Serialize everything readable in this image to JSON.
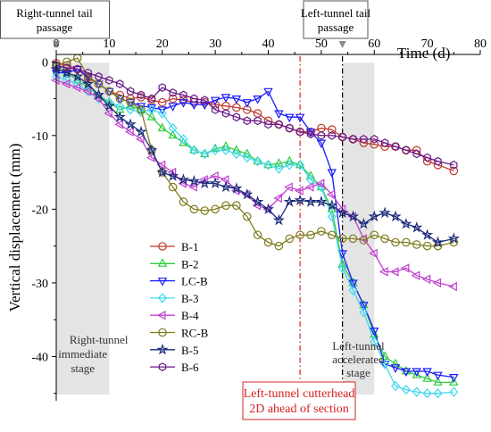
{
  "chart_data": {
    "type": "line",
    "xlabel": "Time (d)",
    "ylabel": "Vertical displacement (mm)",
    "xlim": [
      0,
      80
    ],
    "ylim": [
      -46,
      1
    ],
    "x_ticks": [
      0,
      10,
      20,
      30,
      40,
      50,
      60,
      70,
      80
    ],
    "y_ticks": [
      0,
      -10,
      -20,
      -30,
      -40
    ],
    "x_axis_position": "top",
    "grid": false,
    "legend": "center-left",
    "shaded_bands": [
      {
        "x_start": 0,
        "x_end": 10,
        "label": "Right-tunnel immediate stage"
      },
      {
        "x_start": 54,
        "x_end": 60,
        "label": "Left-tunnel accelerated stage"
      }
    ],
    "vlines": [
      {
        "x": 46,
        "color": "#d62020",
        "style": "dash-dot",
        "label": "Left-tunnel cutterhead 2D ahead of section"
      },
      {
        "x": 54,
        "color": "#000000",
        "style": "dash-dot",
        "label": ""
      }
    ],
    "annotations": [
      {
        "text": "Right-tunnel tail passage",
        "x": 0
      },
      {
        "text": "Left-tunnel tail passage",
        "x": 54
      }
    ],
    "series": [
      {
        "name": "B-1",
        "color": "#c0392b",
        "marker": "circle",
        "x": [
          0,
          2,
          4,
          6,
          8,
          10,
          12,
          14,
          16,
          18,
          20,
          22,
          24,
          26,
          28,
          30,
          32,
          34,
          36,
          38,
          40,
          42,
          44,
          46,
          48,
          50,
          52,
          54,
          56,
          58,
          60,
          62,
          64,
          66,
          68,
          70,
          72,
          75
        ],
        "y": [
          -0.2,
          -0.5,
          -1,
          -2.2,
          -3,
          -4,
          -4.5,
          -5,
          -4.8,
          -5.2,
          -5.5,
          -5,
          -5.2,
          -5.5,
          -5.5,
          -5.8,
          -6,
          -6.2,
          -6.5,
          -7,
          -8,
          -8.5,
          -9,
          -9.5,
          -9.5,
          -9,
          -9.2,
          -10.2,
          -10.5,
          -11,
          -11.2,
          -11.5,
          -11.5,
          -12,
          -12,
          -13.5,
          -14,
          -14.8
        ]
      },
      {
        "name": "B-2",
        "color": "#2ecc40",
        "marker": "triangle-up",
        "x": [
          0,
          2,
          4,
          6,
          8,
          10,
          12,
          14,
          16,
          18,
          20,
          22,
          24,
          26,
          28,
          30,
          32,
          34,
          36,
          38,
          40,
          42,
          44,
          46,
          48,
          50,
          52,
          54,
          56,
          58,
          60,
          62,
          64,
          66,
          68,
          70,
          72,
          75
        ],
        "y": [
          -0.5,
          -1.5,
          -2.5,
          -3.5,
          -4.5,
          -5.5,
          -6.5,
          -6,
          -6.5,
          -7.5,
          -9,
          -10,
          -11,
          -12,
          -12.5,
          -11.8,
          -11.5,
          -12,
          -12.5,
          -13.5,
          -14,
          -13.8,
          -13.5,
          -14,
          -15.5,
          -17,
          -20,
          -27.5,
          -30,
          -33,
          -37,
          -40,
          -41,
          -42,
          -42.5,
          -43,
          -43.5,
          -43.5
        ]
      },
      {
        "name": "LC-B",
        "color": "#1a1aff",
        "marker": "triangle-down",
        "x": [
          0,
          2,
          4,
          6,
          8,
          10,
          12,
          14,
          16,
          18,
          20,
          22,
          24,
          26,
          28,
          30,
          32,
          34,
          36,
          38,
          40,
          42,
          44,
          46,
          48,
          50,
          52,
          54,
          56,
          58,
          60,
          62,
          64,
          66,
          68,
          70,
          72,
          75
        ],
        "y": [
          -1.5,
          -1.5,
          -1,
          -2,
          -3,
          -4,
          -5,
          -5.5,
          -6,
          -6.2,
          -6.5,
          -6,
          -5.5,
          -5.8,
          -5.8,
          -5.2,
          -4.8,
          -5,
          -5.5,
          -5,
          -4,
          -7,
          -7.5,
          -7.5,
          -9.5,
          -11,
          -15,
          -26,
          -30,
          -33,
          -36.5,
          -41,
          -41.5,
          -42,
          -42,
          -42,
          -42.5,
          -42.8
        ]
      },
      {
        "name": "B-3",
        "color": "#40d8f0",
        "marker": "diamond",
        "x": [
          0,
          2,
          4,
          6,
          8,
          10,
          12,
          14,
          16,
          18,
          20,
          22,
          24,
          26,
          28,
          30,
          32,
          34,
          36,
          38,
          40,
          42,
          44,
          46,
          48,
          50,
          52,
          54,
          56,
          58,
          60,
          62,
          64,
          66,
          68,
          70,
          72,
          75
        ],
        "y": [
          -2,
          -2.5,
          -3,
          -4,
          -5,
          -5.5,
          -6,
          -6.5,
          -6.8,
          -6.5,
          -7,
          -9,
          -10.5,
          -12,
          -12.5,
          -12,
          -12,
          -12.5,
          -13,
          -13.5,
          -14,
          -14.5,
          -14,
          -14,
          -16,
          -17,
          -21,
          -28,
          -31,
          -34,
          -38,
          -41,
          -44,
          -44.5,
          -44.8,
          -45,
          -45,
          -44.8
        ]
      },
      {
        "name": "B-4",
        "color": "#c040d0",
        "marker": "triangle-left",
        "x": [
          0,
          2,
          4,
          6,
          8,
          10,
          12,
          14,
          16,
          18,
          20,
          22,
          24,
          26,
          28,
          30,
          32,
          34,
          36,
          38,
          40,
          42,
          44,
          46,
          48,
          50,
          52,
          54,
          56,
          58,
          60,
          62,
          64,
          66,
          68,
          70,
          72,
          75
        ],
        "y": [
          -2.5,
          -3,
          -3.5,
          -4,
          -5,
          -7,
          -8.5,
          -9.5,
          -10.5,
          -13,
          -14,
          -15,
          -16.5,
          -17,
          -16,
          -15.5,
          -16,
          -17.5,
          -18,
          -19.5,
          -20,
          -18.5,
          -17,
          -17.5,
          -17,
          -16.5,
          -18,
          -20,
          -21,
          -24,
          -26,
          -28.5,
          -28.5,
          -28,
          -29,
          -29.5,
          -30,
          -30.5
        ]
      },
      {
        "name": "RC-B",
        "color": "#7f7a1c",
        "marker": "circle",
        "x": [
          0,
          2,
          4,
          6,
          8,
          10,
          12,
          14,
          16,
          18,
          20,
          22,
          24,
          26,
          28,
          30,
          32,
          34,
          36,
          38,
          40,
          42,
          44,
          46,
          48,
          50,
          52,
          54,
          56,
          58,
          60,
          62,
          64,
          66,
          68,
          70,
          72,
          75
        ],
        "y": [
          -0.5,
          0,
          0.5,
          -2,
          -3,
          -4,
          -5,
          -5.5,
          -6.5,
          -12,
          -15,
          -17,
          -19,
          -20,
          -20.2,
          -20,
          -19.5,
          -19.5,
          -21,
          -23.5,
          -24.5,
          -25,
          -24,
          -23.5,
          -23.5,
          -23,
          -23.5,
          -24,
          -24,
          -24.2,
          -23.5,
          -24,
          -24.5,
          -24.5,
          -24.8,
          -25,
          -25,
          -24.5
        ]
      },
      {
        "name": "B-5",
        "color": "#1a2a7a",
        "marker": "star",
        "x": [
          0,
          2,
          4,
          6,
          8,
          10,
          12,
          14,
          16,
          18,
          20,
          22,
          24,
          26,
          28,
          30,
          32,
          34,
          36,
          38,
          40,
          42,
          44,
          46,
          48,
          50,
          52,
          54,
          56,
          58,
          60,
          62,
          64,
          66,
          68,
          70,
          72,
          75
        ],
        "y": [
          -1,
          -1.5,
          -2,
          -3,
          -4.5,
          -6,
          -7.5,
          -8.5,
          -9.5,
          -12,
          -15,
          -15.5,
          -16,
          -16.2,
          -16.5,
          -16.5,
          -17,
          -17.2,
          -18,
          -19,
          -20,
          -21.5,
          -19,
          -18.8,
          -19,
          -19,
          -19.5,
          -20.5,
          -21,
          -22,
          -21,
          -20.5,
          -21,
          -22,
          -22.5,
          -23.5,
          -24.5,
          -24
        ]
      },
      {
        "name": "B-6",
        "color": "#6a1a8a",
        "marker": "hexagon",
        "x": [
          0,
          2,
          4,
          6,
          8,
          10,
          12,
          14,
          16,
          18,
          20,
          22,
          24,
          26,
          28,
          30,
          32,
          34,
          36,
          38,
          40,
          42,
          44,
          46,
          48,
          50,
          52,
          54,
          56,
          58,
          60,
          62,
          64,
          66,
          68,
          70,
          72,
          75
        ],
        "y": [
          -0.5,
          -0.8,
          -1,
          -1.5,
          -2,
          -2.5,
          -3,
          -4,
          -4.5,
          -5,
          -3.5,
          -4.2,
          -4.5,
          -5,
          -5.2,
          -6.5,
          -7,
          -7.5,
          -8,
          -8,
          -8.5,
          -8.5,
          -9,
          -9.5,
          -9.8,
          -10,
          -10,
          -10.2,
          -10.5,
          -10.5,
          -10.5,
          -11,
          -11.5,
          -12,
          -12.5,
          -13,
          -13.5,
          -14
        ]
      }
    ]
  }
}
